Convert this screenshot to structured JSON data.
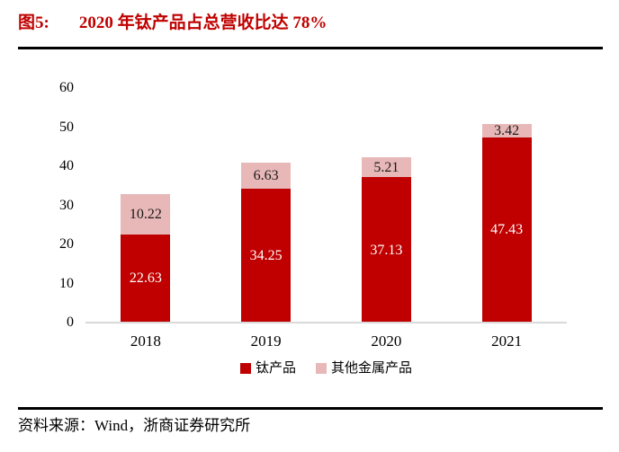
{
  "figure": {
    "label": "图5:",
    "title": "2020 年钛产品占总营收比达 78%",
    "source": "资料来源：Wind，浙商证券研究所"
  },
  "colors": {
    "title_red": "#c00000",
    "primary_bar": "#c00000",
    "secondary_bar": "#e7b8b7",
    "axis_line": "#d9d9d9",
    "divider_rule": "#000000"
  },
  "chart_data": {
    "type": "bar",
    "stacked": true,
    "title": "2020 年钛产品占总营收比达 78%",
    "categories": [
      "2018",
      "2019",
      "2020",
      "2021"
    ],
    "series": [
      {
        "name": "钛产品",
        "color": "#c00000",
        "label_color": "#ffffff",
        "values": [
          22.63,
          34.25,
          37.13,
          47.43
        ]
      },
      {
        "name": "其他金属产品",
        "color": "#e7b8b7",
        "label_color": "#1a1a1a",
        "values": [
          10.22,
          6.63,
          5.21,
          3.42
        ]
      }
    ],
    "xlabel": "",
    "ylabel": "",
    "ylim": [
      0,
      60
    ],
    "ytick_step": 10,
    "yticks": [
      0,
      10,
      20,
      30,
      40,
      50,
      60
    ],
    "grid": false,
    "data_labels": true,
    "legend_position": "bottom"
  }
}
